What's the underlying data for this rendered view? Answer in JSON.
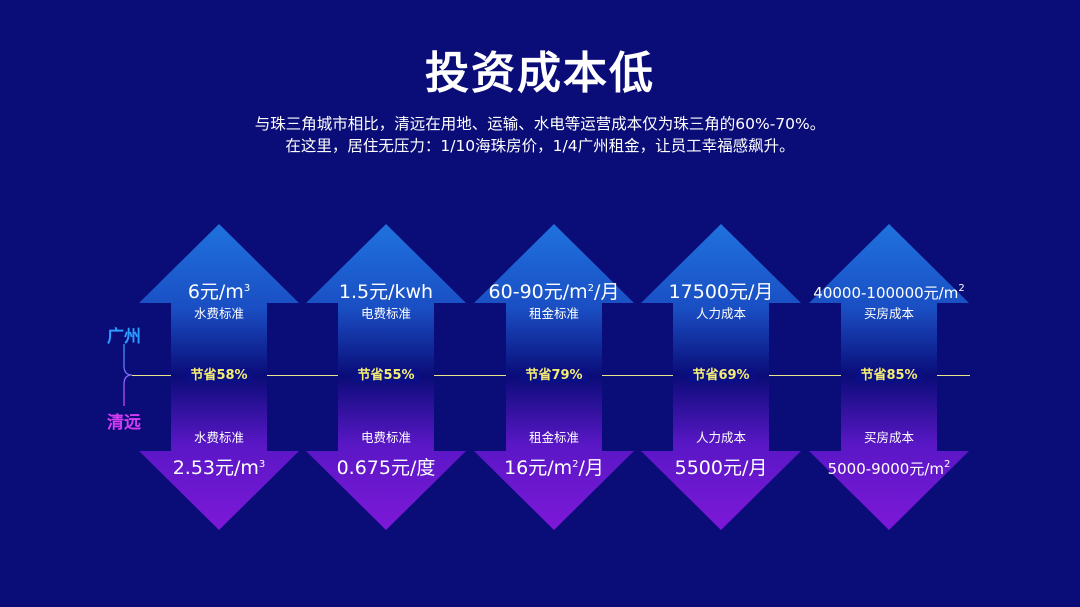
{
  "title": "投资成本低",
  "subtitle_lines": [
    "与珠三角城市相比，清远在用地、运输、水电等运营成本仅为珠三角的60%-70%。",
    "在这里，居住无压力：1/10海珠房价，1/4广州租金，让员工幸福感飙升。"
  ],
  "cities": {
    "top": "广州",
    "bottom": "清远"
  },
  "colors": {
    "background": "#0a0c78",
    "up_arrow": "#1f72de",
    "down_arrow": "#7d18d8",
    "saving_text": "#f3ed74",
    "city_top": "#2a9bff",
    "city_bottom": "#d43cf4"
  },
  "items": [
    {
      "label": "水费标准",
      "guangzhou": {
        "value": "6元/m",
        "sup": "3"
      },
      "saving": "节省58%",
      "qingyuan_label": "水费标准",
      "qingyuan": {
        "value": "2.53元/m",
        "sup": "3"
      }
    },
    {
      "label": "电费标准",
      "guangzhou": {
        "value": "1.5元/kwh",
        "sup": ""
      },
      "saving": "节省55%",
      "qingyuan_label": "电费标准",
      "qingyuan": {
        "value": "0.675元/度",
        "sup": ""
      }
    },
    {
      "label": "租金标准",
      "guangzhou": {
        "value": "60-90元/m",
        "sup": "2",
        "suffix": "/月"
      },
      "saving": "节省79%",
      "qingyuan_label": "租金标准",
      "qingyuan": {
        "value": "16元/m",
        "sup": "2",
        "suffix": "/月"
      }
    },
    {
      "label": "人力成本",
      "guangzhou": {
        "value": "17500元/月",
        "sup": ""
      },
      "saving": "节省69%",
      "qingyuan_label": "人力成本",
      "qingyuan": {
        "value": "5500元/月",
        "sup": ""
      }
    },
    {
      "label": "买房成本",
      "guangzhou": {
        "value": "40000-100000元/m",
        "sup": "2"
      },
      "saving": "节省85%",
      "qingyuan_label": "买房成本",
      "qingyuan": {
        "value": "5000-9000元/m",
        "sup": "2"
      }
    }
  ]
}
